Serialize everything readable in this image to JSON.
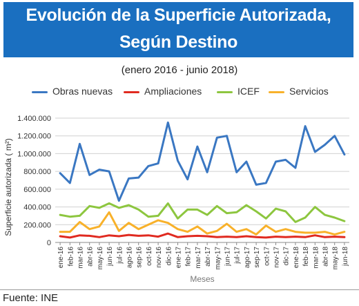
{
  "title_line1": "Evolución de la Superficie Autorizada,",
  "title_line2": "Según Destino",
  "subtitle": "(enero 2016 - junio 2018)",
  "source": "Fuente: INE",
  "colors": {
    "banner": "#1a6fc0",
    "obras": "#3a77c2",
    "ampliaciones": "#e02a20",
    "icef": "#8dc63f",
    "servicios": "#f8b12a",
    "grid": "#d0d0d0"
  },
  "chart_data": {
    "type": "line",
    "xlabel": "Meses",
    "ylabel": "Superficie autorizada ( m²)",
    "ylim": [
      0,
      1400000
    ],
    "yticks": [
      "0",
      "200.000",
      "400.000",
      "600.000",
      "800.000",
      "1.000.000",
      "1.200.000",
      "1.400.000"
    ],
    "grid": true,
    "legend_position": "top",
    "categories": [
      "ene-16",
      "feb-16",
      "mar-16",
      "abr-16",
      "may-16",
      "jun-16",
      "jul-16",
      "ago-16",
      "sep-16",
      "oct-16",
      "nov-16",
      "dic-16",
      "ene-17",
      "feb-17",
      "mar-17",
      "abr-17",
      "may-17",
      "jun-17",
      "jul-17",
      "ago-17",
      "sep-17",
      "oct-17",
      "nov-17",
      "dic-17",
      "ene-18",
      "feb-18",
      "mar-18",
      "abr-18",
      "may-18",
      "jun-18"
    ],
    "series": [
      {
        "name": "Obras nuevas",
        "color": "#3a77c2",
        "values": [
          780000,
          670000,
          1110000,
          760000,
          820000,
          800000,
          470000,
          720000,
          730000,
          860000,
          890000,
          1350000,
          920000,
          710000,
          1080000,
          790000,
          1180000,
          1200000,
          790000,
          910000,
          650000,
          670000,
          910000,
          930000,
          840000,
          1310000,
          1020000,
          1100000,
          1200000,
          990000
        ]
      },
      {
        "name": "Ampliaciones",
        "color": "#e02a20",
        "values": [
          70000,
          55000,
          80000,
          75000,
          60000,
          80000,
          70000,
          85000,
          75000,
          80000,
          65000,
          100000,
          60000,
          70000,
          75000,
          70000,
          60000,
          65000,
          60000,
          70000,
          60000,
          55000,
          65000,
          60000,
          65000,
          60000,
          80000,
          60000,
          65000,
          60000
        ]
      },
      {
        "name": "ICEF",
        "color": "#8dc63f",
        "values": [
          310000,
          290000,
          300000,
          410000,
          390000,
          440000,
          390000,
          420000,
          370000,
          290000,
          300000,
          440000,
          270000,
          370000,
          370000,
          310000,
          410000,
          330000,
          340000,
          420000,
          350000,
          270000,
          380000,
          350000,
          230000,
          280000,
          400000,
          310000,
          280000,
          240000
        ]
      },
      {
        "name": "Servicios",
        "color": "#f8b12a",
        "values": [
          120000,
          120000,
          230000,
          150000,
          180000,
          340000,
          130000,
          220000,
          150000,
          200000,
          250000,
          220000,
          150000,
          120000,
          180000,
          100000,
          130000,
          210000,
          120000,
          150000,
          90000,
          190000,
          120000,
          150000,
          120000,
          110000,
          110000,
          120000,
          90000,
          120000
        ]
      }
    ]
  }
}
